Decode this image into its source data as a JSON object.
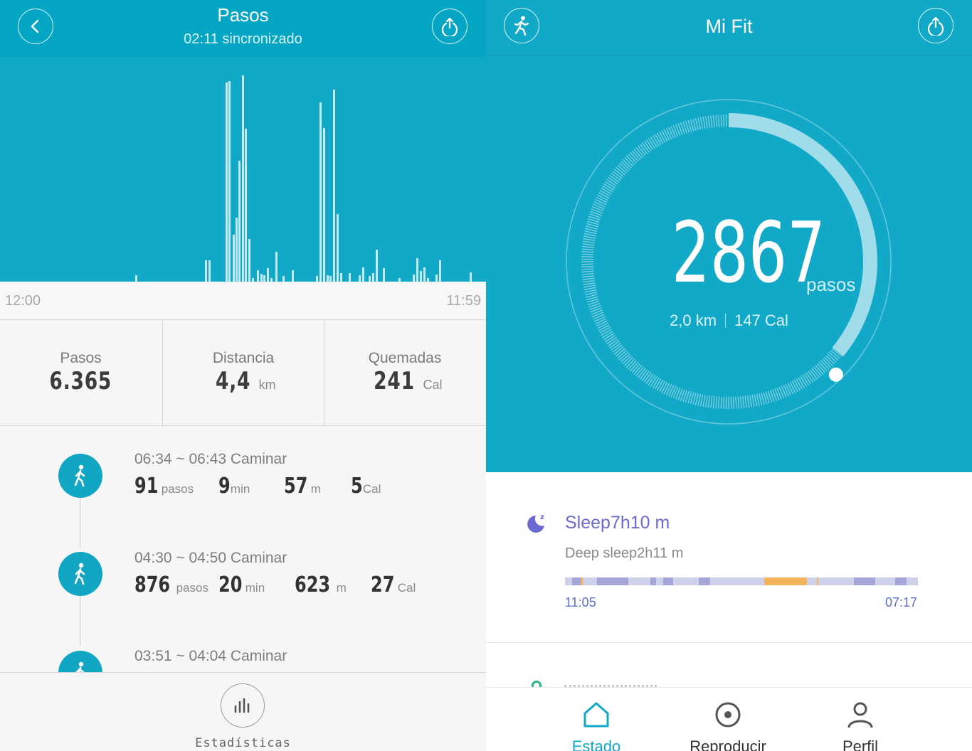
{
  "left": {
    "header": {
      "title": "Pasos",
      "subtitle": "02:11 sincronizado"
    },
    "chart_data": {
      "type": "bar",
      "x_start_label": "12:00",
      "x_end_label": "11:59",
      "bars": [
        {
          "x": 190,
          "h": 9
        },
        {
          "x": 288,
          "h": 30
        },
        {
          "x": 293,
          "h": 30
        },
        {
          "x": 317,
          "h": 280
        },
        {
          "x": 321,
          "h": 282
        },
        {
          "x": 327,
          "h": 66
        },
        {
          "x": 331,
          "h": 90
        },
        {
          "x": 335,
          "h": 170
        },
        {
          "x": 340,
          "h": 290
        },
        {
          "x": 344,
          "h": 215
        },
        {
          "x": 349,
          "h": 60
        },
        {
          "x": 354,
          "h": 5
        },
        {
          "x": 361,
          "h": 16
        },
        {
          "x": 366,
          "h": 11
        },
        {
          "x": 370,
          "h": 9
        },
        {
          "x": 375,
          "h": 19
        },
        {
          "x": 380,
          "h": 5
        },
        {
          "x": 387,
          "h": 42
        },
        {
          "x": 397,
          "h": 8
        },
        {
          "x": 410,
          "h": 16
        },
        {
          "x": 444,
          "h": 8
        },
        {
          "x": 449,
          "h": 252
        },
        {
          "x": 454,
          "h": 216
        },
        {
          "x": 459,
          "h": 9
        },
        {
          "x": 463,
          "h": 8
        },
        {
          "x": 468,
          "h": 270
        },
        {
          "x": 473,
          "h": 95
        },
        {
          "x": 478,
          "h": 12
        },
        {
          "x": 490,
          "h": 12
        },
        {
          "x": 504,
          "h": 9
        },
        {
          "x": 509,
          "h": 20
        },
        {
          "x": 518,
          "h": 8
        },
        {
          "x": 523,
          "h": 12
        },
        {
          "x": 528,
          "h": 45
        },
        {
          "x": 538,
          "h": 19
        },
        {
          "x": 560,
          "h": 5
        },
        {
          "x": 580,
          "h": 10
        },
        {
          "x": 585,
          "h": 33
        },
        {
          "x": 590,
          "h": 15
        },
        {
          "x": 595,
          "h": 20
        },
        {
          "x": 600,
          "h": 5
        },
        {
          "x": 612,
          "h": 10
        },
        {
          "x": 617,
          "h": 30
        },
        {
          "x": 660,
          "h": 13
        }
      ]
    },
    "summary": [
      {
        "label": "Pasos",
        "value": "6.365",
        "unit": ""
      },
      {
        "label": "Distancia",
        "value": "4,4",
        "unit": "km"
      },
      {
        "label": "Quemadas",
        "value": "241",
        "unit": "Cal"
      }
    ],
    "activities": [
      {
        "title": "06:34 ~ 06:43 Caminar",
        "steps": "91",
        "steps_unit": "pasos",
        "minutes": "9",
        "minutes_unit": "min",
        "meters": "57",
        "meters_unit": "m",
        "cal": "5",
        "cal_unit": "Cal"
      },
      {
        "title": "04:30 ~ 04:50 Caminar",
        "steps": "876",
        "steps_unit": "pasos",
        "minutes": "20",
        "minutes_unit": "min",
        "meters": "623",
        "meters_unit": "m",
        "cal": "27",
        "cal_unit": "Cal"
      },
      {
        "title": "03:51 ~ 04:04 Caminar"
      }
    ],
    "footer": {
      "stats_label": "Estadísticas"
    },
    "icons": {
      "back": "chevron-left-icon",
      "share": "upload-icon",
      "walk": "walking-icon",
      "stats": "bar-chart-icon"
    },
    "colors": {
      "header": "#05a6c4",
      "chart_bg": "#12a9c8",
      "accent": "#11a7c4"
    }
  },
  "right": {
    "header": {
      "title": "Mi Fit"
    },
    "steps": {
      "value": "2867",
      "unit": "pasos",
      "distance": "2,0 km",
      "calories": "147 Cal",
      "goal_progress": 0.36
    },
    "sleep": {
      "title": "Sleep7h10 m",
      "deep": "Deep sleep2h11 m",
      "start": "11:05",
      "end": "07:17",
      "deep_color": "#a3a6d6",
      "light_color": "#cfd0ea",
      "awake_color": "#f3b35a"
    },
    "nav": [
      {
        "label": "Estado",
        "active": true
      },
      {
        "label": "Reproducir",
        "active": false
      },
      {
        "label": "Perfil",
        "active": false
      }
    ],
    "icons": {
      "run": "running-icon",
      "share": "upload-icon",
      "moon": "moon-sleep-icon",
      "home": "home-icon",
      "play": "record-icon",
      "profile": "person-icon"
    }
  }
}
